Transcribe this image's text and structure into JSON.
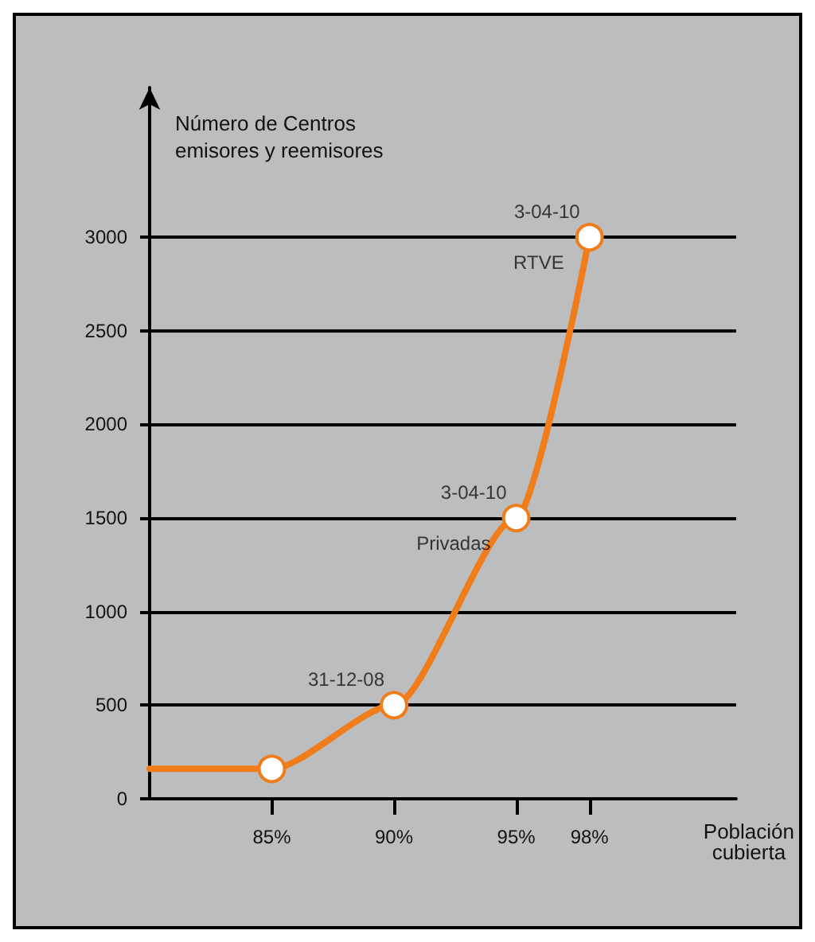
{
  "chart_data": {
    "type": "line",
    "xlabel": "Población\ncubierta",
    "ylabel": "Número de Centros\nemisores y reemisores",
    "x": [
      80,
      85,
      90,
      95,
      98
    ],
    "series": [
      {
        "color": "#f07d1a",
        "values": [
          160,
          160,
          500,
          1500,
          3000
        ]
      }
    ],
    "xlim": [
      80,
      104
    ],
    "xticks": [
      {
        "value": 85,
        "label": "85%"
      },
      {
        "value": 90,
        "label": "90%"
      },
      {
        "value": 95,
        "label": "95%"
      },
      {
        "value": 98,
        "label": "98%"
      }
    ],
    "ylim": [
      0,
      3800
    ],
    "yticks": [
      0,
      500,
      1000,
      1500,
      2000,
      2500,
      3000
    ],
    "grid": "y",
    "marker": "circle",
    "annotations": [
      {
        "text": "3-04-10",
        "x": 98,
        "y": 3000
      },
      {
        "text": "RTVE",
        "x": 98,
        "y": 3000
      },
      {
        "text": "3-04-10",
        "x": 95,
        "y": 1500
      },
      {
        "text": "Privadas",
        "x": 95,
        "y": 1500
      },
      {
        "text": "31-12-08",
        "x": 90,
        "y": 500
      }
    ]
  }
}
